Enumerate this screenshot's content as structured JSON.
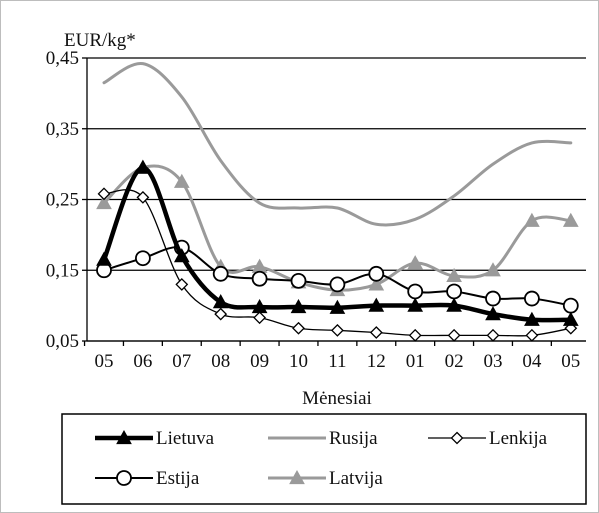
{
  "chart_data": {
    "type": "line",
    "ylabel": "EUR/kg*",
    "xlabel": "Mėnesiai",
    "categories": [
      "05",
      "06",
      "07",
      "08",
      "09",
      "10",
      "11",
      "12",
      "01",
      "02",
      "03",
      "04",
      "05"
    ],
    "ylim": [
      0.05,
      0.45
    ],
    "yticks": [
      0.05,
      0.15,
      0.25,
      0.35,
      0.45
    ],
    "ytick_labels": [
      "0,05",
      "0,15",
      "0,25",
      "0,35",
      "0,45"
    ],
    "grid": "horizontal",
    "legend_position": "bottom",
    "series": [
      {
        "name": "Lietuva",
        "color": "#000000",
        "marker": "triangle-filled",
        "values": [
          0.165,
          0.295,
          0.17,
          0.105,
          0.098,
          0.098,
          0.097,
          0.1,
          0.1,
          0.1,
          0.088,
          0.08,
          0.08
        ]
      },
      {
        "name": "Rusija",
        "color": "#9a9a9a",
        "marker": "none",
        "values": [
          0.415,
          0.442,
          0.395,
          0.305,
          0.245,
          0.238,
          0.238,
          0.215,
          0.222,
          0.255,
          0.3,
          0.33,
          0.33
        ]
      },
      {
        "name": "Lenkija",
        "color": "#000000",
        "marker": "diamond-open",
        "values": [
          0.258,
          0.253,
          0.13,
          0.088,
          0.083,
          0.068,
          0.065,
          0.062,
          0.058,
          0.058,
          0.058,
          0.058,
          0.068
        ]
      },
      {
        "name": "Estija",
        "color": "#000000",
        "marker": "circle-open",
        "values": [
          0.15,
          0.167,
          0.182,
          0.145,
          0.138,
          0.135,
          0.13,
          0.145,
          0.12,
          0.12,
          0.11,
          0.11,
          0.1
        ]
      },
      {
        "name": "Latvija",
        "color": "#9a9a9a",
        "marker": "triangle-filled",
        "values": [
          0.245,
          0.295,
          0.275,
          0.155,
          0.155,
          0.133,
          0.122,
          0.13,
          0.16,
          0.142,
          0.15,
          0.22,
          0.22
        ]
      }
    ]
  }
}
